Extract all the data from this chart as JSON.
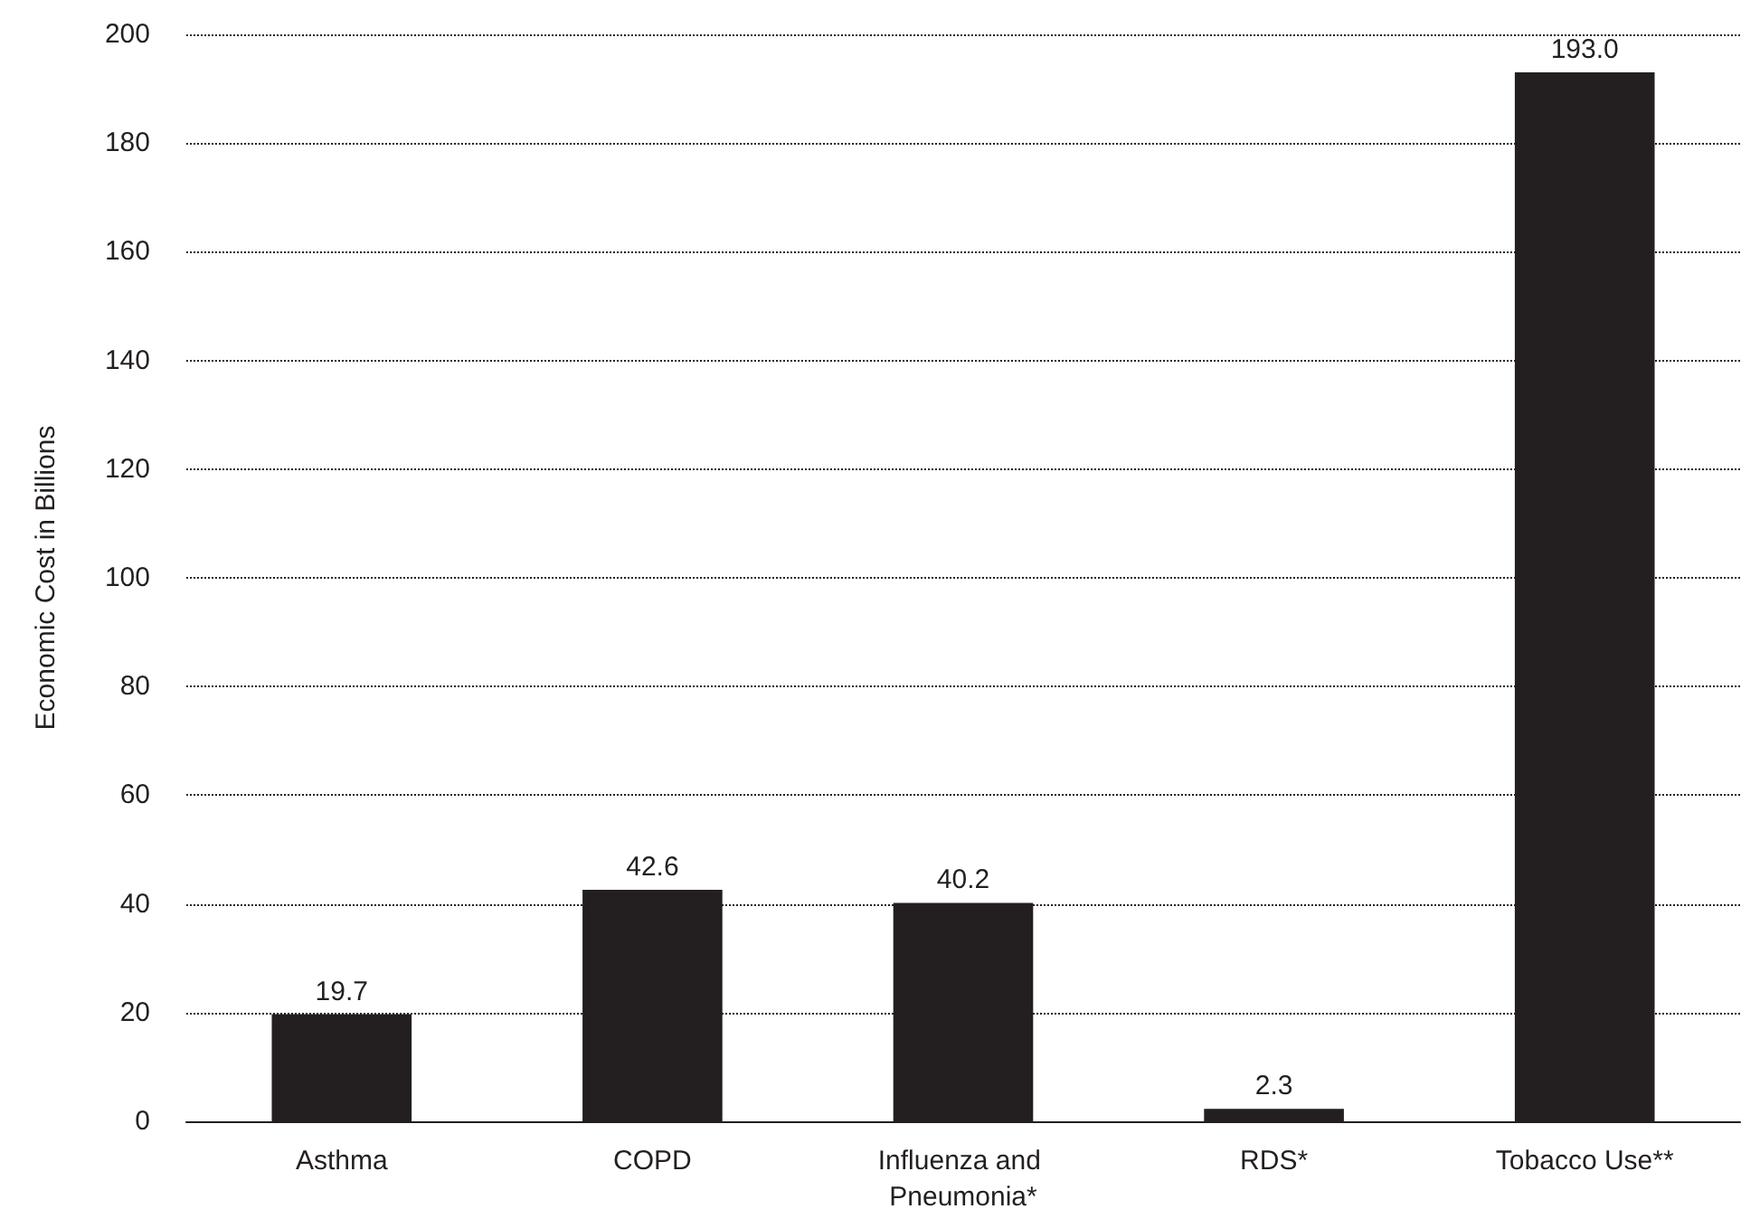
{
  "chart_data": {
    "type": "bar",
    "ylabel": "Economic Cost in Billions",
    "categories": [
      "Asthma",
      "COPD",
      "Influenza and Pneumonia*",
      "RDS*",
      "Tobacco Use**"
    ],
    "values": [
      19.7,
      42.6,
      40.2,
      2.3,
      193.0
    ],
    "value_labels": [
      "19.7",
      "42.6",
      "40.2",
      "2.3",
      "193.0"
    ],
    "color": "#231f20",
    "ylim": [
      0,
      200
    ],
    "yticks": [
      0,
      20,
      40,
      60,
      80,
      100,
      120,
      140,
      160,
      180,
      200
    ],
    "grid": "y"
  }
}
